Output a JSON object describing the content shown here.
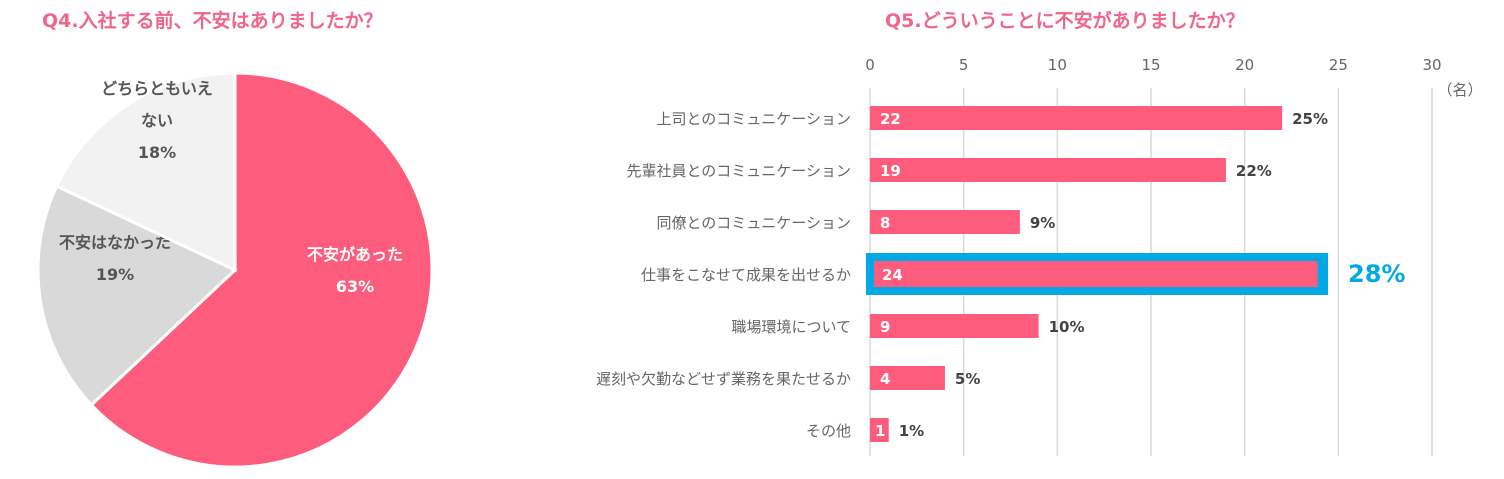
{
  "chart_data": [
    {
      "type": "pie",
      "title": "Q4.入社する前、不安はありましたか？",
      "slices": [
        {
          "label": "不安があった",
          "value": 63,
          "pct_label": "63%",
          "color": "#fd5c7c",
          "text_color": "#ffffff"
        },
        {
          "label": "不安はなかった",
          "value": 19,
          "pct_label": "19%",
          "color": "#d9d9d9",
          "text_color": "#555555"
        },
        {
          "label": "どちらともいえない",
          "label_lines": [
            "どちらともいえ",
            "ない"
          ],
          "value": 18,
          "pct_label": "18%",
          "color": "#f2f2f2",
          "text_color": "#555555"
        }
      ]
    },
    {
      "type": "bar",
      "orientation": "horizontal",
      "title": "Q5.どういうことに不安がありましたか？",
      "unit_label": "（名）",
      "xlim": [
        0,
        30
      ],
      "xticks": [
        0,
        5,
        10,
        15,
        20,
        25,
        30
      ],
      "grid": true,
      "bar_color": "#fd5c7c",
      "highlight_color": "#00a9e6",
      "categories": [
        "上司とのコミュニケーション",
        "先輩社員とのコミュニケーション",
        "同僚とのコミュニケーション",
        "仕事をこなせて成果を出せるか",
        "職場環境について",
        "遅刻や欠勤などせず業務を果たせるか",
        "その他"
      ],
      "values": [
        22,
        19,
        8,
        24,
        9,
        4,
        1
      ],
      "pct_labels": [
        "25%",
        "22%",
        "9%",
        "28%",
        "10%",
        "5%",
        "1%"
      ],
      "highlight_index": 3
    }
  ]
}
